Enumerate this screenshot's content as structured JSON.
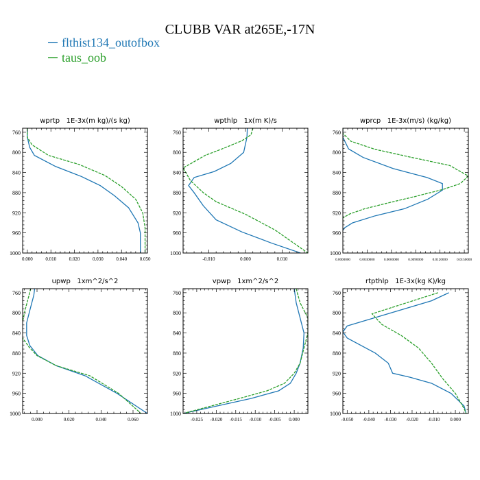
{
  "figure": {
    "title": "CLUBB VAR at265E,-17N",
    "legend": [
      {
        "name": "flthist134_outofbox",
        "color": "#1f77b4"
      },
      {
        "name": "taus_oob",
        "color": "#2ca02c"
      }
    ]
  },
  "chart_data": [
    {
      "type": "line",
      "title": "wprtp   1E-3x(m kg)/(s kg)",
      "xlim": [
        -0.002,
        0.051
      ],
      "ylim": [
        1000,
        752
      ],
      "y_reversed": true,
      "xticks": [
        "0.000",
        "0.010",
        "0.020",
        "0.030",
        "0.040",
        "0.050"
      ],
      "xtick_values": [
        0,
        0.01,
        0.02,
        0.03,
        0.04,
        0.05
      ],
      "yticks": [
        "760",
        "800",
        "840",
        "880",
        "920",
        "960",
        "1000"
      ],
      "ytick_values": [
        760,
        800,
        840,
        880,
        920,
        960,
        1000
      ],
      "series": [
        {
          "name": "flthist134_outofbox",
          "x": [
            0.0,
            0.0,
            0.001,
            0.003,
            0.012,
            0.023,
            0.031,
            0.037,
            0.043,
            0.047,
            0.048,
            0.048
          ],
          "y": [
            752,
            770,
            790,
            806,
            828,
            848,
            866,
            886,
            910,
            940,
            960,
            1000
          ]
        },
        {
          "name": "taus_oob",
          "x": [
            0.0,
            0.0,
            0.002,
            0.009,
            0.022,
            0.033,
            0.04,
            0.046,
            0.049,
            0.05,
            0.05
          ],
          "y": [
            752,
            770,
            785,
            806,
            824,
            846,
            868,
            893,
            920,
            950,
            1000
          ]
        }
      ]
    },
    {
      "type": "line",
      "title": "wpthlp   1x(m K)/s",
      "xlim": [
        -0.017,
        0.017
      ],
      "ylim": [
        1000,
        752
      ],
      "y_reversed": true,
      "xticks": [
        "-0.010",
        "0.000",
        "0.010"
      ],
      "xtick_values": [
        -0.01,
        0,
        0.01
      ],
      "yticks": [
        "760",
        "800",
        "840",
        "880",
        "920",
        "960",
        "1000"
      ],
      "ytick_values": [
        760,
        800,
        840,
        880,
        920,
        960,
        1000
      ],
      "series": [
        {
          "name": "flthist134_outofbox",
          "x": [
            0.0005,
            0.0004,
            -0.0005,
            -0.004,
            -0.0085,
            -0.014,
            -0.0155,
            -0.014,
            -0.0115,
            -0.008,
            -0.001,
            0.007,
            0.015
          ],
          "y": [
            752,
            770,
            800,
            822,
            838,
            850,
            866,
            880,
            906,
            934,
            958,
            980,
            1000
          ]
        },
        {
          "name": "taus_oob",
          "x": [
            0.002,
            0.0015,
            -0.001,
            -0.006,
            -0.011,
            -0.017,
            -0.015,
            -0.0115,
            -0.008,
            0.0,
            0.008,
            0.017
          ],
          "y": [
            752,
            765,
            777,
            792,
            806,
            831,
            856,
            880,
            898,
            923,
            954,
            1000
          ]
        }
      ]
    },
    {
      "type": "line",
      "title": "wprcp   1E-3x(m/s) (kg/kg)",
      "xlim": [
        0.0,
        0.0155
      ],
      "ylim": [
        1000,
        752
      ],
      "y_reversed": true,
      "xticks": [
        "0.0000000",
        "0.0030000",
        "0.0060000",
        "0.0090000",
        "0.0120000",
        "0.0150000"
      ],
      "xtick_values": [
        0,
        0.003,
        0.006,
        0.009,
        0.012,
        0.015
      ],
      "yticks": [
        "760",
        "800",
        "840",
        "880",
        "920",
        "960",
        "1000"
      ],
      "ytick_values": [
        760,
        800,
        840,
        880,
        920,
        960,
        1000
      ],
      "series": [
        {
          "name": "flthist134_outofbox",
          "x": [
            0.0,
            0.0,
            0.0007,
            0.0025,
            0.0062,
            0.0104,
            0.0123,
            0.0123,
            0.0105,
            0.0076,
            0.004,
            0.0012,
            0.0002,
            0.0
          ],
          "y": [
            752,
            770,
            793,
            810,
            832,
            850,
            862,
            875,
            893,
            912,
            926,
            940,
            950,
            955
          ]
        },
        {
          "name": "taus_oob",
          "x": [
            0.0,
            0.0,
            0.001,
            0.004,
            0.0085,
            0.0132,
            0.0155,
            0.0145,
            0.0125,
            0.0091,
            0.0057,
            0.0027,
            0.0009,
            0.0,
            0.0
          ],
          "y": [
            752,
            762,
            778,
            794,
            810,
            826,
            847,
            862,
            873,
            887,
            900,
            912,
            922,
            930,
            938
          ]
        }
      ]
    },
    {
      "type": "line",
      "title": "upwp   1xm^2/s^2",
      "xlim": [
        -0.009,
        0.069
      ],
      "ylim": [
        1000,
        752
      ],
      "y_reversed": true,
      "xticks": [
        "0.000",
        "0.020",
        "0.040",
        "0.060"
      ],
      "xtick_values": [
        0,
        0.02,
        0.04,
        0.06
      ],
      "yticks": [
        "760",
        "800",
        "840",
        "880",
        "920",
        "960",
        "1000"
      ],
      "ytick_values": [
        760,
        800,
        840,
        880,
        920,
        960,
        1000
      ],
      "series": [
        {
          "name": "flthist134_outofbox",
          "x": [
            -0.0015,
            -0.002,
            -0.0045,
            -0.0065,
            -0.0065,
            -0.0045,
            0.0005,
            0.012,
            0.03,
            0.05,
            0.069
          ],
          "y": [
            752,
            765,
            795,
            820,
            845,
            865,
            885,
            905,
            925,
            960,
            1000
          ]
        },
        {
          "name": "taus_oob",
          "x": [
            -0.004,
            -0.005,
            -0.0075,
            -0.0095,
            -0.009,
            -0.005,
            0.0,
            0.012,
            0.033,
            0.051,
            0.065
          ],
          "y": [
            752,
            765,
            795,
            825,
            850,
            868,
            885,
            905,
            925,
            960,
            1000
          ]
        }
      ]
    },
    {
      "type": "line",
      "title": "vpwp   1xm^2/s^2",
      "xlim": [
        -0.0285,
        0.0035
      ],
      "ylim": [
        1000,
        752
      ],
      "y_reversed": true,
      "xticks": [
        "-0.025",
        "-0.020",
        "-0.015",
        "-0.010",
        "-0.005",
        "0.000"
      ],
      "xtick_values": [
        -0.025,
        -0.02,
        -0.015,
        -0.01,
        -0.005,
        0
      ],
      "yticks": [
        "760",
        "800",
        "840",
        "880",
        "920",
        "960",
        "1000"
      ],
      "ytick_values": [
        760,
        800,
        840,
        880,
        920,
        960,
        1000
      ],
      "series": [
        {
          "name": "flthist134_outofbox",
          "x": [
            0.0,
            0.0005,
            0.0015,
            0.0025,
            0.0023,
            0.0015,
            0.0005,
            -0.001,
            -0.004,
            -0.011,
            -0.0285
          ],
          "y": [
            752,
            780,
            810,
            840,
            870,
            900,
            920,
            940,
            955,
            970,
            1000
          ]
        },
        {
          "name": "taus_oob",
          "x": [
            0.0005,
            0.0015,
            0.0035,
            0.0035,
            0.0025,
            0.0015,
            0.0,
            -0.0025,
            -0.007,
            -0.014,
            -0.0285
          ],
          "y": [
            752,
            780,
            810,
            840,
            870,
            900,
            920,
            940,
            955,
            970,
            1000
          ]
        }
      ]
    },
    {
      "type": "line",
      "title": "rtpthlp   1E-3x(kg K)/kg",
      "xlim": [
        -0.052,
        0.006
      ],
      "ylim": [
        1000,
        752
      ],
      "y_reversed": true,
      "xticks": [
        "-0.050",
        "-0.040",
        "-0.030",
        "-0.020",
        "-0.010",
        "0.000"
      ],
      "xtick_values": [
        -0.05,
        -0.04,
        -0.03,
        -0.02,
        -0.01,
        0
      ],
      "yticks": [
        "760",
        "800",
        "840",
        "880",
        "920",
        "960",
        "1000"
      ],
      "ytick_values": [
        760,
        800,
        840,
        880,
        920,
        960,
        1000
      ],
      "series": [
        {
          "name": "flthist134_outofbox",
          "x": [
            -0.003,
            -0.011,
            -0.05,
            -0.052,
            -0.05,
            -0.037,
            -0.031,
            -0.029,
            -0.021,
            -0.011,
            -0.002,
            0.004,
            0.005
          ],
          "y": [
            760,
            776,
            826,
            838,
            850,
            880,
            900,
            920,
            928,
            940,
            960,
            985,
            1000
          ]
        },
        {
          "name": "taus_oob",
          "x": [
            -0.008,
            -0.0385,
            -0.034,
            -0.025,
            -0.017,
            -0.011,
            -0.006,
            0.0,
            0.004,
            0.005
          ],
          "y": [
            760,
            802,
            823,
            845,
            870,
            900,
            930,
            960,
            990,
            1000
          ]
        }
      ]
    }
  ]
}
